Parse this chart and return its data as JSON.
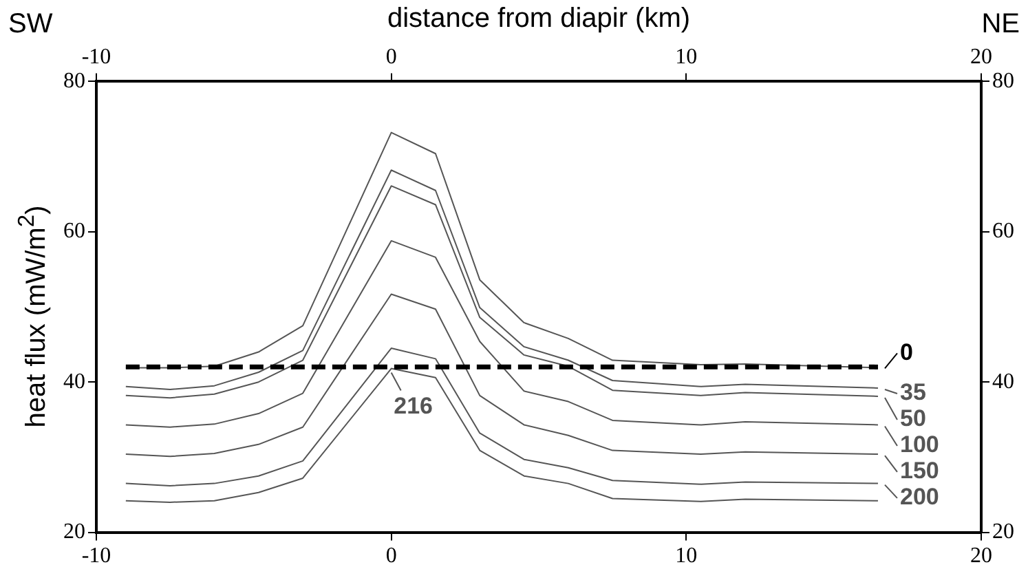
{
  "chart_data": {
    "type": "line",
    "x2label": "distance from diapir (km)",
    "ylabel": "heat flux (mW/m$^{2}$)",
    "annotations": [
      "SW",
      "NE"
    ],
    "x": [
      -9,
      -7.5,
      -6,
      -4.5,
      -3,
      0,
      1.5,
      3,
      4.5,
      6,
      7.5,
      10.5,
      12,
      16.5
    ],
    "series": [
      {
        "name": "0",
        "color": "#000000",
        "x": [
          -9,
          16.5
        ],
        "values": [
          42,
          42
        ],
        "line_style": "dashed"
      },
      {
        "color": "#555555",
        "values": [
          41.9,
          41.9,
          42.1,
          44.0,
          47.5,
          73.2,
          70.4,
          53.6,
          47.9,
          45.8,
          42.9,
          42.3,
          42.4,
          41.9
        ]
      },
      {
        "name": "35",
        "color": "#555555",
        "values": [
          39.4,
          39.0,
          39.5,
          41.3,
          44.2,
          68.2,
          65.5,
          49.9,
          44.7,
          42.9,
          40.2,
          39.4,
          39.7,
          39.2
        ]
      },
      {
        "name": "50",
        "color": "#555555",
        "values": [
          38.2,
          37.9,
          38.4,
          40.0,
          42.9,
          66.1,
          63.6,
          48.6,
          43.6,
          42.1,
          38.9,
          38.2,
          38.6,
          38.1
        ]
      },
      {
        "name": "100",
        "color": "#555555",
        "values": [
          34.3,
          34.0,
          34.4,
          35.8,
          38.5,
          58.8,
          56.6,
          45.4,
          38.8,
          37.4,
          34.9,
          34.3,
          34.7,
          34.3
        ]
      },
      {
        "name": "150",
        "color": "#555555",
        "values": [
          30.4,
          30.1,
          30.5,
          31.7,
          34.0,
          51.7,
          49.7,
          38.2,
          34.3,
          32.9,
          30.9,
          30.4,
          30.7,
          30.4
        ]
      },
      {
        "name": "200",
        "color": "#555555",
        "values": [
          26.5,
          26.2,
          26.5,
          27.5,
          29.5,
          44.5,
          43.1,
          33.2,
          29.7,
          28.6,
          26.9,
          26.4,
          26.7,
          26.5
        ]
      },
      {
        "name": "216",
        "color": "#555555",
        "values": [
          24.2,
          24.0,
          24.2,
          25.3,
          27.2,
          41.8,
          40.6,
          30.9,
          27.5,
          26.5,
          24.5,
          24.1,
          24.4,
          24.2
        ]
      }
    ],
    "xlim": [
      -10,
      20
    ],
    "xticks": [
      -10,
      0,
      10,
      20
    ],
    "x2lim": [
      -10,
      20
    ],
    "x2ticks": [
      -10,
      0,
      10,
      20
    ],
    "ylim": [
      20,
      80
    ],
    "yticks": [
      20,
      40,
      60,
      80
    ],
    "y2lim": [
      20,
      80
    ],
    "y2ticks": [
      20,
      40,
      60,
      80
    ],
    "grid": false,
    "legend": "right",
    "marker": "none",
    "line_style": "solid"
  }
}
